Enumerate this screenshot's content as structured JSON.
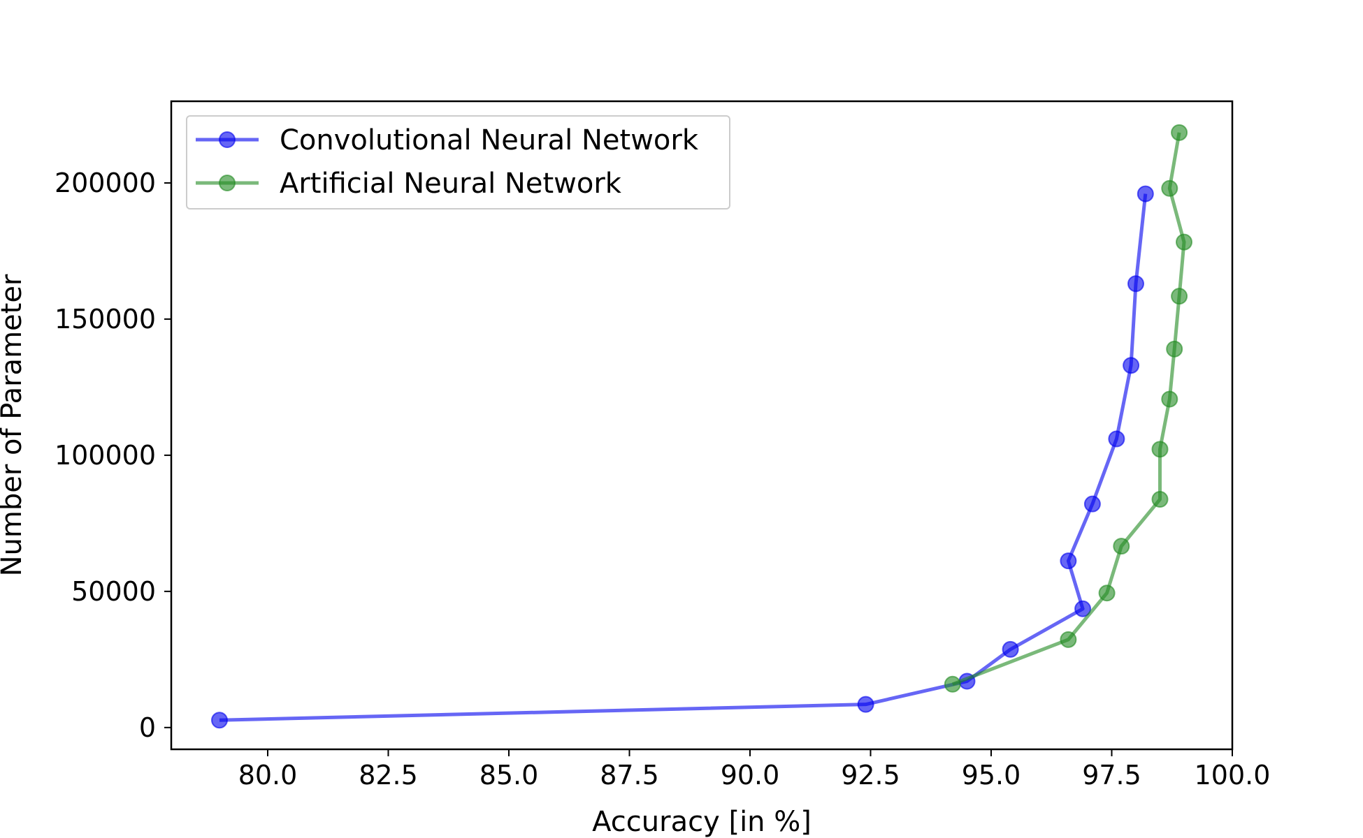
{
  "chart_data": {
    "type": "line",
    "title": "",
    "xlabel": "Accuracy [in %]",
    "ylabel": "Number of Parameter",
    "xlim": [
      78,
      100
    ],
    "ylim": [
      -8000,
      230000
    ],
    "x_ticks": [
      80.0,
      82.5,
      85.0,
      87.5,
      90.0,
      92.5,
      95.0,
      97.5,
      100.0
    ],
    "x_tick_labels": [
      "80.0",
      "82.5",
      "85.0",
      "87.5",
      "90.0",
      "92.5",
      "95.0",
      "97.5",
      "100.0"
    ],
    "y_ticks": [
      0,
      50000,
      100000,
      150000,
      200000
    ],
    "y_tick_labels": [
      "0",
      "50000",
      "100000",
      "150000",
      "200000"
    ],
    "grid": false,
    "legend_position": "top-left",
    "series": [
      {
        "name": "Convolutional Neural Network",
        "color": "#0000ee",
        "points": [
          [
            79.0,
            2700
          ],
          [
            92.4,
            8500
          ],
          [
            94.5,
            17000
          ],
          [
            95.4,
            28700
          ],
          [
            96.9,
            43600
          ],
          [
            96.6,
            61200
          ],
          [
            97.1,
            82100
          ],
          [
            97.6,
            106000
          ],
          [
            97.9,
            133000
          ],
          [
            98.0,
            163000
          ],
          [
            98.2,
            196000
          ]
        ]
      },
      {
        "name": "Artificial Neural Network",
        "color": "#228B22",
        "points": [
          [
            94.2,
            15900
          ],
          [
            96.6,
            32300
          ],
          [
            97.4,
            49400
          ],
          [
            97.7,
            66600
          ],
          [
            98.5,
            83800
          ],
          [
            98.5,
            102200
          ],
          [
            98.7,
            120600
          ],
          [
            98.8,
            139000
          ],
          [
            98.9,
            158400
          ],
          [
            99.0,
            178300
          ],
          [
            98.7,
            198000
          ],
          [
            98.9,
            218500
          ]
        ]
      }
    ]
  }
}
